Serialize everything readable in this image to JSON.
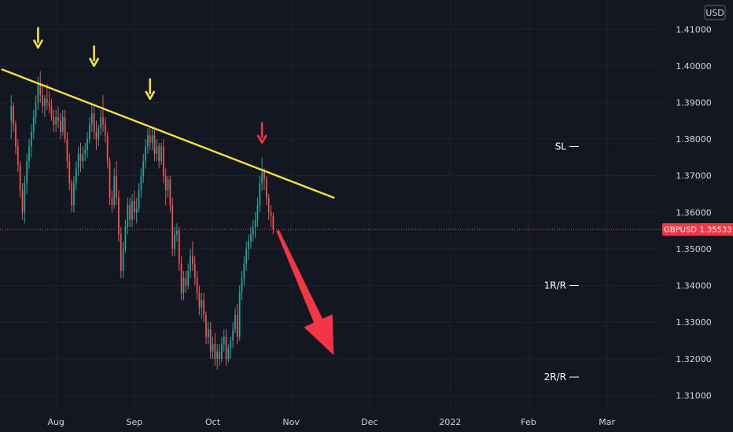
{
  "chart_data": {
    "type": "candlestick",
    "symbol": "GBPUSD",
    "currency": "USD",
    "last_price": "1.35533",
    "ylim": [
      1.306,
      1.418
    ],
    "x_range": [
      -5,
      290
    ],
    "y_ticks": [
      "1.41000",
      "1.40000",
      "1.39000",
      "1.38000",
      "1.37000",
      "1.36000",
      "1.35000",
      "1.34000",
      "1.33000",
      "1.32000",
      "1.31000"
    ],
    "x_ticks": [
      {
        "label": "Aug",
        "x": 20
      },
      {
        "label": "Sep",
        "x": 55
      },
      {
        "label": "Oct",
        "x": 90
      },
      {
        "label": "Nov",
        "x": 125
      },
      {
        "label": "Dec",
        "x": 160
      },
      {
        "label": "2022",
        "x": 196
      },
      {
        "label": "Feb",
        "x": 231
      },
      {
        "label": "Mar",
        "x": 266
      }
    ],
    "candles": [
      [
        0,
        1.385,
        1.392,
        1.38,
        1.389
      ],
      [
        1,
        1.389,
        1.39,
        1.382,
        1.384
      ],
      [
        2,
        1.384,
        1.385,
        1.376,
        1.378
      ],
      [
        3,
        1.378,
        1.38,
        1.371,
        1.373
      ],
      [
        4,
        1.373,
        1.374,
        1.364,
        1.366
      ],
      [
        5,
        1.366,
        1.368,
        1.358,
        1.36
      ],
      [
        6,
        1.36,
        1.37,
        1.357,
        1.368
      ],
      [
        7,
        1.368,
        1.376,
        1.365,
        1.374
      ],
      [
        8,
        1.374,
        1.38,
        1.372,
        1.378
      ],
      [
        9,
        1.378,
        1.384,
        1.375,
        1.382
      ],
      [
        10,
        1.382,
        1.388,
        1.38,
        1.386
      ],
      [
        11,
        1.386,
        1.392,
        1.384,
        1.39
      ],
      [
        12,
        1.39,
        1.397,
        1.388,
        1.395
      ],
      [
        13,
        1.395,
        1.3985,
        1.39,
        1.392
      ],
      [
        14,
        1.392,
        1.395,
        1.387,
        1.389
      ],
      [
        15,
        1.389,
        1.392,
        1.386,
        1.391
      ],
      [
        16,
        1.391,
        1.395,
        1.388,
        1.39
      ],
      [
        17,
        1.39,
        1.393,
        1.387,
        1.389
      ],
      [
        18,
        1.389,
        1.391,
        1.385,
        1.386
      ],
      [
        19,
        1.386,
        1.388,
        1.382,
        1.384
      ],
      [
        20,
        1.384,
        1.388,
        1.382,
        1.386
      ],
      [
        21,
        1.386,
        1.389,
        1.383,
        1.385
      ],
      [
        22,
        1.385,
        1.387,
        1.38,
        1.382
      ],
      [
        23,
        1.382,
        1.388,
        1.381,
        1.386
      ],
      [
        24,
        1.386,
        1.388,
        1.379,
        1.38
      ],
      [
        25,
        1.38,
        1.382,
        1.372,
        1.374
      ],
      [
        26,
        1.374,
        1.376,
        1.366,
        1.368
      ],
      [
        27,
        1.368,
        1.369,
        1.36,
        1.362
      ],
      [
        28,
        1.362,
        1.37,
        1.36,
        1.368
      ],
      [
        29,
        1.368,
        1.374,
        1.366,
        1.372
      ],
      [
        30,
        1.372,
        1.378,
        1.37,
        1.376
      ],
      [
        31,
        1.376,
        1.379,
        1.371,
        1.374
      ],
      [
        32,
        1.374,
        1.378,
        1.372,
        1.376
      ],
      [
        33,
        1.376,
        1.379,
        1.374,
        1.377
      ],
      [
        34,
        1.377,
        1.382,
        1.375,
        1.38
      ],
      [
        35,
        1.38,
        1.386,
        1.379,
        1.384
      ],
      [
        36,
        1.384,
        1.39,
        1.382,
        1.387
      ],
      [
        37,
        1.387,
        1.389,
        1.38,
        1.382
      ],
      [
        38,
        1.382,
        1.385,
        1.377,
        1.38
      ],
      [
        39,
        1.38,
        1.384,
        1.378,
        1.383
      ],
      [
        40,
        1.383,
        1.388,
        1.381,
        1.386
      ],
      [
        41,
        1.386,
        1.392,
        1.382,
        1.384
      ],
      [
        42,
        1.384,
        1.386,
        1.379,
        1.381
      ],
      [
        43,
        1.381,
        1.382,
        1.372,
        1.374
      ],
      [
        44,
        1.374,
        1.375,
        1.362,
        1.364
      ],
      [
        45,
        1.364,
        1.366,
        1.36,
        1.362
      ],
      [
        46,
        1.362,
        1.372,
        1.361,
        1.37
      ],
      [
        47,
        1.37,
        1.374,
        1.362,
        1.364
      ],
      [
        48,
        1.364,
        1.366,
        1.352,
        1.354
      ],
      [
        49,
        1.354,
        1.356,
        1.342,
        1.344
      ],
      [
        50,
        1.344,
        1.352,
        1.342,
        1.35
      ],
      [
        51,
        1.35,
        1.358,
        1.349,
        1.356
      ],
      [
        52,
        1.356,
        1.364,
        1.354,
        1.362
      ],
      [
        53,
        1.362,
        1.364,
        1.356,
        1.358
      ],
      [
        54,
        1.358,
        1.365,
        1.356,
        1.363
      ],
      [
        55,
        1.363,
        1.366,
        1.358,
        1.36
      ],
      [
        56,
        1.36,
        1.364,
        1.357,
        1.361
      ],
      [
        57,
        1.361,
        1.368,
        1.36,
        1.366
      ],
      [
        58,
        1.366,
        1.372,
        1.364,
        1.37
      ],
      [
        59,
        1.37,
        1.376,
        1.368,
        1.374
      ],
      [
        60,
        1.374,
        1.38,
        1.372,
        1.378
      ],
      [
        61,
        1.378,
        1.383,
        1.376,
        1.381
      ],
      [
        62,
        1.381,
        1.3835,
        1.377,
        1.379
      ],
      [
        63,
        1.379,
        1.383,
        1.377,
        1.381
      ],
      [
        64,
        1.381,
        1.383,
        1.374,
        1.376
      ],
      [
        65,
        1.376,
        1.38,
        1.374,
        1.378
      ],
      [
        66,
        1.378,
        1.379,
        1.372,
        1.374
      ],
      [
        67,
        1.374,
        1.379,
        1.373,
        1.378
      ],
      [
        68,
        1.378,
        1.38,
        1.368,
        1.37
      ],
      [
        69,
        1.37,
        1.372,
        1.362,
        1.366
      ],
      [
        70,
        1.366,
        1.37,
        1.364,
        1.369
      ],
      [
        71,
        1.369,
        1.37,
        1.36,
        1.362
      ],
      [
        72,
        1.362,
        1.364,
        1.348,
        1.35
      ],
      [
        73,
        1.35,
        1.356,
        1.348,
        1.354
      ],
      [
        74,
        1.354,
        1.357,
        1.352,
        1.355
      ],
      [
        75,
        1.355,
        1.356,
        1.344,
        1.346
      ],
      [
        76,
        1.346,
        1.348,
        1.336,
        1.338
      ],
      [
        77,
        1.338,
        1.344,
        1.336,
        1.342
      ],
      [
        78,
        1.342,
        1.344,
        1.338,
        1.34
      ],
      [
        79,
        1.34,
        1.346,
        1.339,
        1.344
      ],
      [
        80,
        1.344,
        1.35,
        1.342,
        1.348
      ],
      [
        81,
        1.348,
        1.352,
        1.344,
        1.346
      ],
      [
        82,
        1.346,
        1.348,
        1.34,
        1.342
      ],
      [
        83,
        1.342,
        1.344,
        1.336,
        1.338
      ],
      [
        84,
        1.338,
        1.34,
        1.332,
        1.334
      ],
      [
        85,
        1.334,
        1.338,
        1.331,
        1.336
      ],
      [
        86,
        1.336,
        1.338,
        1.33,
        1.332
      ],
      [
        87,
        1.332,
        1.333,
        1.324,
        1.326
      ],
      [
        88,
        1.326,
        1.33,
        1.324,
        1.328
      ],
      [
        89,
        1.328,
        1.33,
        1.32,
        1.322
      ],
      [
        90,
        1.322,
        1.326,
        1.32,
        1.324
      ],
      [
        91,
        1.324,
        1.327,
        1.318,
        1.32
      ],
      [
        92,
        1.32,
        1.324,
        1.317,
        1.322
      ],
      [
        93,
        1.322,
        1.324,
        1.318,
        1.32
      ],
      [
        94,
        1.32,
        1.326,
        1.319,
        1.324
      ],
      [
        95,
        1.324,
        1.328,
        1.322,
        1.326
      ],
      [
        96,
        1.326,
        1.328,
        1.318,
        1.32
      ],
      [
        97,
        1.32,
        1.324,
        1.319,
        1.323
      ],
      [
        98,
        1.323,
        1.326,
        1.32,
        1.325
      ],
      [
        99,
        1.325,
        1.33,
        1.323,
        1.328
      ],
      [
        100,
        1.328,
        1.334,
        1.327,
        1.332
      ],
      [
        101,
        1.332,
        1.335,
        1.324,
        1.326
      ],
      [
        102,
        1.326,
        1.34,
        1.325,
        1.338
      ],
      [
        103,
        1.338,
        1.344,
        1.336,
        1.342
      ],
      [
        104,
        1.342,
        1.348,
        1.34,
        1.346
      ],
      [
        105,
        1.346,
        1.352,
        1.344,
        1.35
      ],
      [
        106,
        1.35,
        1.354,
        1.347,
        1.352
      ],
      [
        107,
        1.352,
        1.356,
        1.35,
        1.354
      ],
      [
        108,
        1.354,
        1.358,
        1.352,
        1.356
      ],
      [
        109,
        1.356,
        1.36,
        1.353,
        1.358
      ],
      [
        110,
        1.358,
        1.364,
        1.356,
        1.362
      ],
      [
        111,
        1.362,
        1.37,
        1.36,
        1.368
      ],
      [
        112,
        1.368,
        1.375,
        1.366,
        1.371
      ],
      [
        113,
        1.371,
        1.372,
        1.366,
        1.369
      ],
      [
        114,
        1.369,
        1.37,
        1.362,
        1.364
      ],
      [
        115,
        1.364,
        1.365,
        1.358,
        1.36
      ],
      [
        116,
        1.36,
        1.362,
        1.356,
        1.359
      ],
      [
        117,
        1.359,
        1.36,
        1.354,
        1.3553
      ]
    ],
    "trendline": {
      "from": [
        -4,
        1.399
      ],
      "to": [
        144,
        1.364
      ]
    },
    "arrows_down_yellow": [
      {
        "x": 12,
        "y": 1.405
      },
      {
        "x": 37,
        "y": 1.4
      },
      {
        "x": 62,
        "y": 1.391
      }
    ],
    "arrow_down_red": {
      "x": 112,
      "y": 1.379
    },
    "projection_arrow": {
      "from": [
        119,
        1.355
      ],
      "to": [
        144,
        1.321
      ]
    },
    "levels": [
      {
        "label": "SL",
        "y": 1.378
      },
      {
        "label": "1R/R",
        "y": 1.34
      },
      {
        "label": "2R/R",
        "y": 1.315
      }
    ],
    "colors": {
      "background": "#131722",
      "up": "#26a69a",
      "down": "#ef5350",
      "trendline": "#f5e33b",
      "arrow_yellow": "#f5e33b",
      "arrow_red": "#f23645",
      "projection": "#f23645",
      "grid": "#1e222d",
      "price_line": "#ef5350",
      "axis_text": "#d1d4dc",
      "badge": "#f23645"
    }
  }
}
